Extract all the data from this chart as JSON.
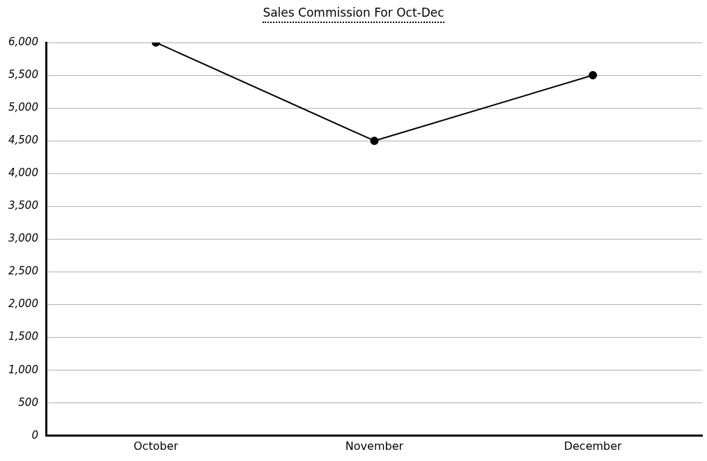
{
  "chart_data": {
    "type": "line",
    "title": "Sales Commission For Oct-Dec",
    "categories": [
      "October",
      "November",
      "December"
    ],
    "series": [
      {
        "color": "#000000",
        "values": [
          6000,
          4500,
          5500
        ]
      }
    ],
    "ylim": [
      0,
      6000
    ],
    "yticks": [
      {
        "value": 0,
        "label": "0"
      },
      {
        "value": 500,
        "label": "500"
      },
      {
        "value": 1000,
        "label": "1,000"
      },
      {
        "value": 1500,
        "label": "1,500"
      },
      {
        "value": 2000,
        "label": "2,000"
      },
      {
        "value": 2500,
        "label": "2,500"
      },
      {
        "value": 3000,
        "label": "3,000"
      },
      {
        "value": 3500,
        "label": "3,500"
      },
      {
        "value": 4000,
        "label": "4,000"
      },
      {
        "value": 4500,
        "label": "4,500"
      },
      {
        "value": 5000,
        "label": "5,000"
      },
      {
        "value": 5500,
        "label": "5,500"
      },
      {
        "value": 6000,
        "label": "6,000"
      }
    ],
    "grid": "y",
    "legend": false,
    "marker": "circle",
    "line_style": "solid"
  }
}
